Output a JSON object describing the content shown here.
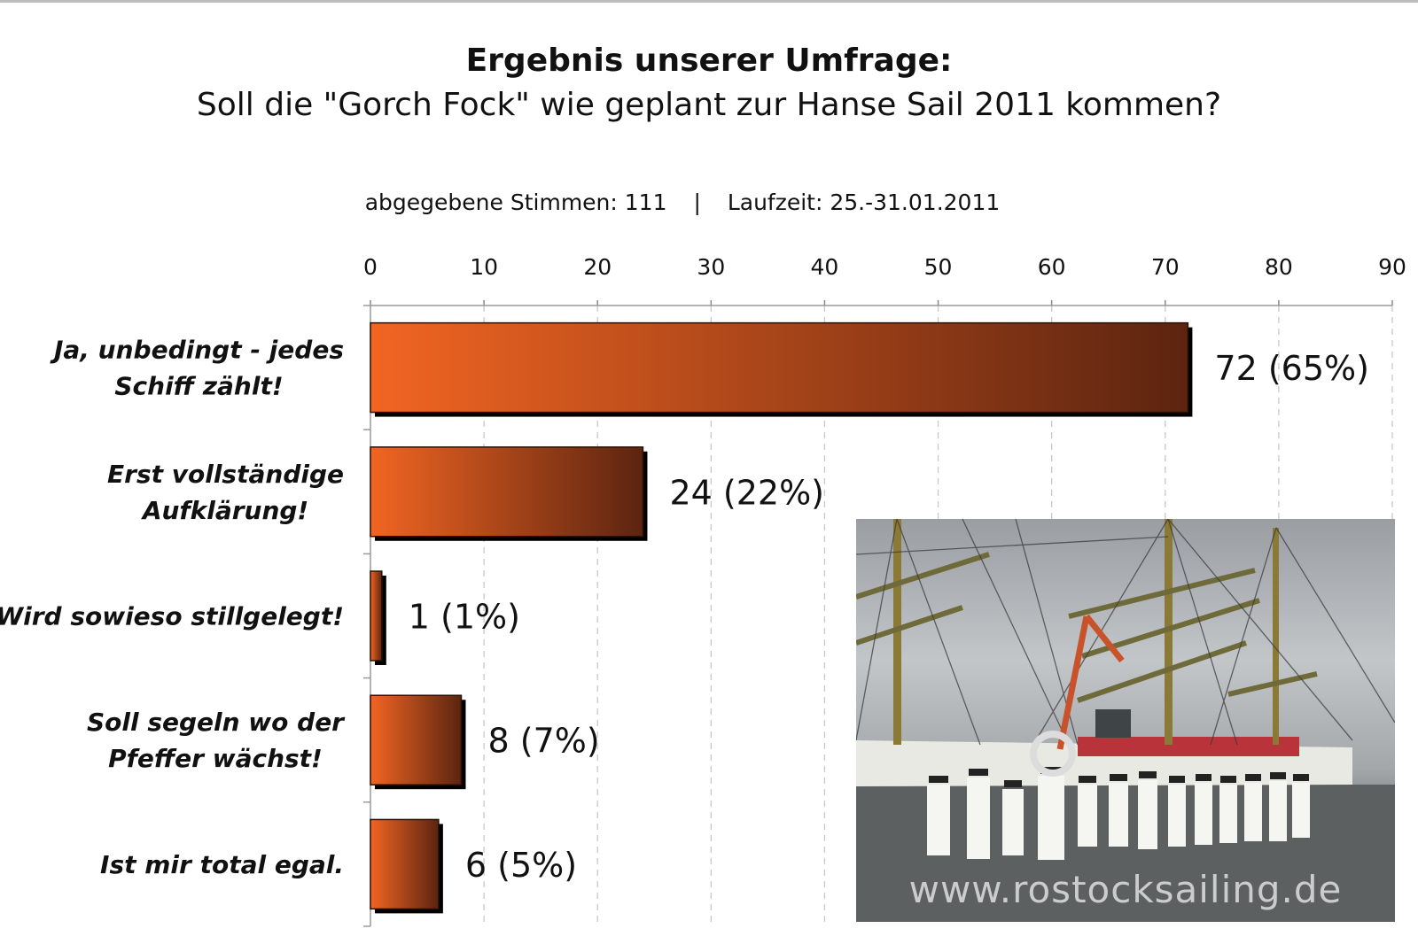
{
  "header": {
    "title": "Ergebnis unserer Umfrage:",
    "subtitle": "Soll die \"Gorch Fock\" wie geplant zur Hanse Sail 2011 kommen?",
    "votes": "abgegebene Stimmen: 111",
    "separator": "|",
    "period": "Laufzeit: 25.-31.01.2011"
  },
  "chart_data": {
    "type": "bar",
    "orientation": "horizontal",
    "title": "Ergebnis unserer Umfrage:",
    "subtitle": "Soll die \"Gorch Fock\" wie geplant zur Hanse Sail 2011 kommen?",
    "categories": [
      [
        "Ja, unbedingt - jedes",
        "Schiff zählt!"
      ],
      [
        "Erst vollständige",
        "Aufklärung!"
      ],
      [
        "Wird sowieso stillgelegt!"
      ],
      [
        "Soll segeln wo der",
        "Pfeffer wächst!"
      ],
      [
        "Ist mir total egal."
      ]
    ],
    "values": [
      72,
      24,
      1,
      8,
      6
    ],
    "data_labels": [
      "72 (65%)",
      "24 (22%)",
      "1 (1%)",
      "8 (7%)",
      "6 (5%)"
    ],
    "xlim": [
      0,
      90
    ],
    "ticks": [
      "0",
      "10",
      "20",
      "30",
      "40",
      "50",
      "60",
      "70",
      "80",
      "90"
    ],
    "axis_position": "top",
    "grid": true,
    "legend": "none",
    "colors": {
      "bar_start": "#f26522",
      "bar_end": "#5c2410",
      "shadow": "#000000",
      "grid": "#c8c8c8"
    }
  },
  "photo": {
    "watermark": "www.rostocksailing.de"
  }
}
